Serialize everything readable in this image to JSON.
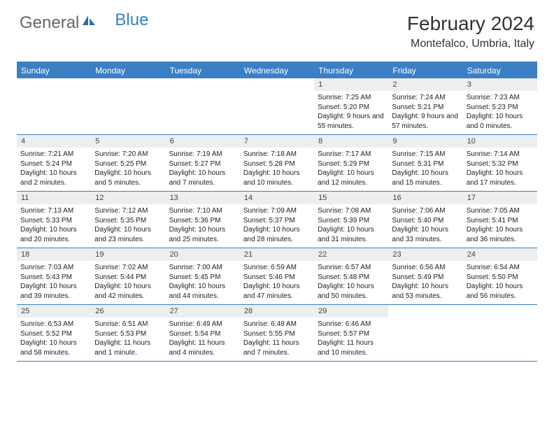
{
  "logo": {
    "text1": "General",
    "text2": "Blue"
  },
  "title": "February 2024",
  "location": "Montefalco, Umbria, Italy",
  "colors": {
    "accent": "#3b7fc4",
    "header_bg": "#3b7fc4",
    "daynum_bg": "#eceef0"
  },
  "weekdays": [
    "Sunday",
    "Monday",
    "Tuesday",
    "Wednesday",
    "Thursday",
    "Friday",
    "Saturday"
  ],
  "weeks": [
    [
      {
        "n": "",
        "empty": true
      },
      {
        "n": "",
        "empty": true
      },
      {
        "n": "",
        "empty": true
      },
      {
        "n": "",
        "empty": true
      },
      {
        "n": "1",
        "sr": "Sunrise: 7:25 AM",
        "ss": "Sunset: 5:20 PM",
        "dl": "Daylight: 9 hours and 55 minutes."
      },
      {
        "n": "2",
        "sr": "Sunrise: 7:24 AM",
        "ss": "Sunset: 5:21 PM",
        "dl": "Daylight: 9 hours and 57 minutes."
      },
      {
        "n": "3",
        "sr": "Sunrise: 7:23 AM",
        "ss": "Sunset: 5:23 PM",
        "dl": "Daylight: 10 hours and 0 minutes."
      }
    ],
    [
      {
        "n": "4",
        "sr": "Sunrise: 7:21 AM",
        "ss": "Sunset: 5:24 PM",
        "dl": "Daylight: 10 hours and 2 minutes."
      },
      {
        "n": "5",
        "sr": "Sunrise: 7:20 AM",
        "ss": "Sunset: 5:25 PM",
        "dl": "Daylight: 10 hours and 5 minutes."
      },
      {
        "n": "6",
        "sr": "Sunrise: 7:19 AM",
        "ss": "Sunset: 5:27 PM",
        "dl": "Daylight: 10 hours and 7 minutes."
      },
      {
        "n": "7",
        "sr": "Sunrise: 7:18 AM",
        "ss": "Sunset: 5:28 PM",
        "dl": "Daylight: 10 hours and 10 minutes."
      },
      {
        "n": "8",
        "sr": "Sunrise: 7:17 AM",
        "ss": "Sunset: 5:29 PM",
        "dl": "Daylight: 10 hours and 12 minutes."
      },
      {
        "n": "9",
        "sr": "Sunrise: 7:15 AM",
        "ss": "Sunset: 5:31 PM",
        "dl": "Daylight: 10 hours and 15 minutes."
      },
      {
        "n": "10",
        "sr": "Sunrise: 7:14 AM",
        "ss": "Sunset: 5:32 PM",
        "dl": "Daylight: 10 hours and 17 minutes."
      }
    ],
    [
      {
        "n": "11",
        "sr": "Sunrise: 7:13 AM",
        "ss": "Sunset: 5:33 PM",
        "dl": "Daylight: 10 hours and 20 minutes."
      },
      {
        "n": "12",
        "sr": "Sunrise: 7:12 AM",
        "ss": "Sunset: 5:35 PM",
        "dl": "Daylight: 10 hours and 23 minutes."
      },
      {
        "n": "13",
        "sr": "Sunrise: 7:10 AM",
        "ss": "Sunset: 5:36 PM",
        "dl": "Daylight: 10 hours and 25 minutes."
      },
      {
        "n": "14",
        "sr": "Sunrise: 7:09 AM",
        "ss": "Sunset: 5:37 PM",
        "dl": "Daylight: 10 hours and 28 minutes."
      },
      {
        "n": "15",
        "sr": "Sunrise: 7:08 AM",
        "ss": "Sunset: 5:39 PM",
        "dl": "Daylight: 10 hours and 31 minutes."
      },
      {
        "n": "16",
        "sr": "Sunrise: 7:06 AM",
        "ss": "Sunset: 5:40 PM",
        "dl": "Daylight: 10 hours and 33 minutes."
      },
      {
        "n": "17",
        "sr": "Sunrise: 7:05 AM",
        "ss": "Sunset: 5:41 PM",
        "dl": "Daylight: 10 hours and 36 minutes."
      }
    ],
    [
      {
        "n": "18",
        "sr": "Sunrise: 7:03 AM",
        "ss": "Sunset: 5:43 PM",
        "dl": "Daylight: 10 hours and 39 minutes."
      },
      {
        "n": "19",
        "sr": "Sunrise: 7:02 AM",
        "ss": "Sunset: 5:44 PM",
        "dl": "Daylight: 10 hours and 42 minutes."
      },
      {
        "n": "20",
        "sr": "Sunrise: 7:00 AM",
        "ss": "Sunset: 5:45 PM",
        "dl": "Daylight: 10 hours and 44 minutes."
      },
      {
        "n": "21",
        "sr": "Sunrise: 6:59 AM",
        "ss": "Sunset: 5:46 PM",
        "dl": "Daylight: 10 hours and 47 minutes."
      },
      {
        "n": "22",
        "sr": "Sunrise: 6:57 AM",
        "ss": "Sunset: 5:48 PM",
        "dl": "Daylight: 10 hours and 50 minutes."
      },
      {
        "n": "23",
        "sr": "Sunrise: 6:56 AM",
        "ss": "Sunset: 5:49 PM",
        "dl": "Daylight: 10 hours and 53 minutes."
      },
      {
        "n": "24",
        "sr": "Sunrise: 6:54 AM",
        "ss": "Sunset: 5:50 PM",
        "dl": "Daylight: 10 hours and 56 minutes."
      }
    ],
    [
      {
        "n": "25",
        "sr": "Sunrise: 6:53 AM",
        "ss": "Sunset: 5:52 PM",
        "dl": "Daylight: 10 hours and 58 minutes."
      },
      {
        "n": "26",
        "sr": "Sunrise: 6:51 AM",
        "ss": "Sunset: 5:53 PM",
        "dl": "Daylight: 11 hours and 1 minute."
      },
      {
        "n": "27",
        "sr": "Sunrise: 6:49 AM",
        "ss": "Sunset: 5:54 PM",
        "dl": "Daylight: 11 hours and 4 minutes."
      },
      {
        "n": "28",
        "sr": "Sunrise: 6:48 AM",
        "ss": "Sunset: 5:55 PM",
        "dl": "Daylight: 11 hours and 7 minutes."
      },
      {
        "n": "29",
        "sr": "Sunrise: 6:46 AM",
        "ss": "Sunset: 5:57 PM",
        "dl": "Daylight: 11 hours and 10 minutes."
      },
      {
        "n": "",
        "empty": true
      },
      {
        "n": "",
        "empty": true
      }
    ]
  ]
}
